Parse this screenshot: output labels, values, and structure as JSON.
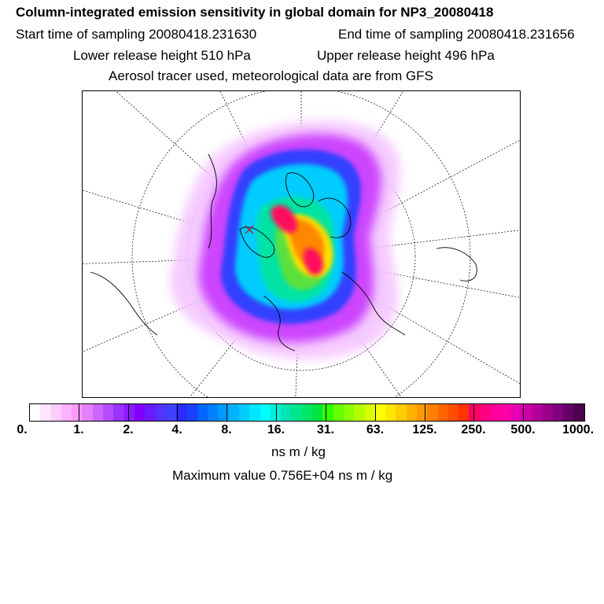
{
  "header": {
    "title": "Column-integrated emission sensitivity in global domain for NP3_20080418",
    "start_time": "Start time of sampling 20080418.231630",
    "end_time": "End time of sampling 20080418.231656",
    "lower_height": "Lower release height  510 hPa",
    "upper_height": "Upper release height  496 hPa",
    "tracer_info": "Aerosol tracer used, meteorological data are from GFS"
  },
  "map": {
    "projection": "north-polar-stereographic",
    "plume_colors": [
      "#ff99ff",
      "#cc33ff",
      "#7a2cff",
      "#2244ff",
      "#00ccff",
      "#00e5a0",
      "#33dd33",
      "#ddee22",
      "#ffd400",
      "#ff8800",
      "#ff1060"
    ]
  },
  "colorbar": {
    "colors": [
      "#ffffff",
      "#ffe6ff",
      "#ffccff",
      "#ffb3ff",
      "#ff99ff",
      "#e680ff",
      "#cc66ff",
      "#b34dff",
      "#9933ff",
      "#8f1aff",
      "#8000ff",
      "#6a1aff",
      "#5533ff",
      "#4040ff",
      "#2b2bff",
      "#1a40ff",
      "#0066ff",
      "#0080ff",
      "#0099ff",
      "#00b3ff",
      "#00ccff",
      "#00e6ff",
      "#00ffff",
      "#00f0d9",
      "#00e6b3",
      "#00e68c",
      "#00e666",
      "#00e640",
      "#33ff00",
      "#66ff00",
      "#8cff00",
      "#b3ff00",
      "#d9ff00",
      "#ffff00",
      "#ffe600",
      "#ffcc00",
      "#ffb300",
      "#ff9900",
      "#ff8000",
      "#ff6600",
      "#ff4d00",
      "#ff3300",
      "#ff0066",
      "#ff0080",
      "#ff0099",
      "#ff00a6",
      "#e600b3",
      "#cc00a6",
      "#b30099",
      "#99008c",
      "#800080",
      "#660066",
      "#4d004d"
    ],
    "labels": [
      "0.",
      "1.",
      "2.",
      "4.",
      "8.",
      "16.",
      "31.",
      "63.",
      "125.",
      "250.",
      "500.",
      "1000."
    ],
    "units": "ns m / kg",
    "max_value": "Maximum value  0.756E+04 ns m / kg"
  }
}
